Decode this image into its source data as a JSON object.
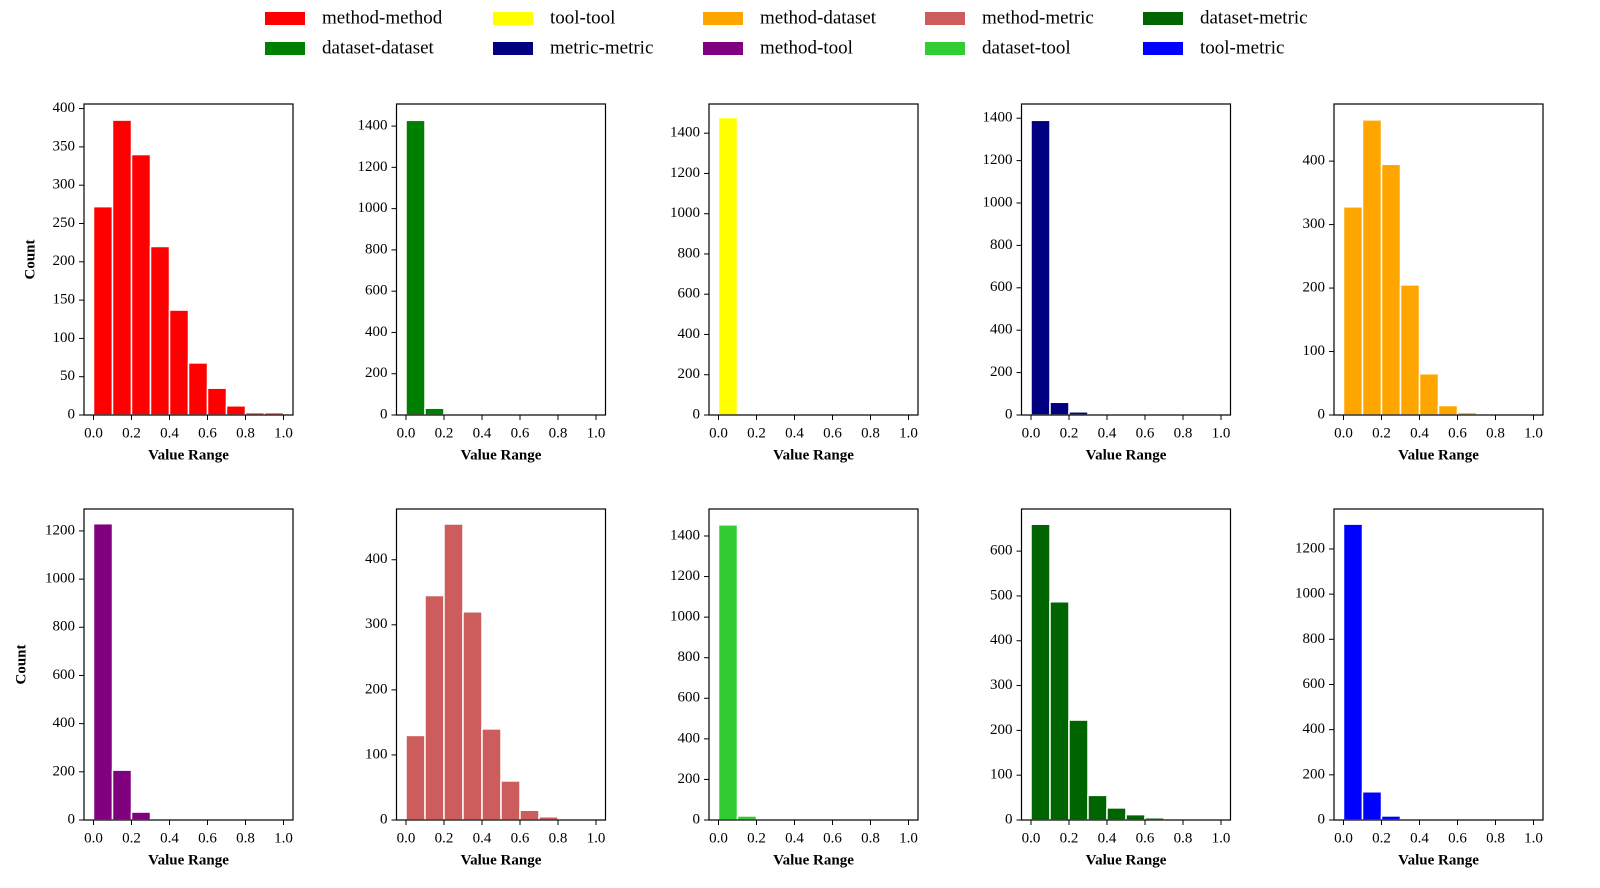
{
  "chart_data": [
    {
      "type": "histogram",
      "xlabel": "Value Range",
      "ylabel": "Count",
      "series": [
        {
          "name": "method-method",
          "color": "#ff0000",
          "values": [
            272,
            385,
            340,
            220,
            137,
            68,
            35,
            12,
            3,
            3
          ]
        }
      ],
      "bins": [
        0,
        0.1,
        0.2,
        0.3,
        0.4,
        0.5,
        0.6,
        0.7,
        0.8,
        0.9,
        1
      ],
      "xlim": [
        -0.05,
        1.05
      ],
      "ylim": [
        0,
        406
      ],
      "xticks": [
        {
          "value": 0,
          "label": "0.0"
        },
        0.2,
        0.4,
        0.6,
        0.8,
        {
          "value": 1,
          "label": "1.0"
        }
      ],
      "yticks": [
        0,
        50,
        100,
        150,
        200,
        250,
        300,
        350,
        400
      ]
    },
    {
      "type": "histogram",
      "xlabel": "Value Range",
      "series": [
        {
          "name": "dataset-dataset",
          "color": "#008000",
          "values": [
            1428,
            33,
            5,
            2,
            1,
            0,
            0,
            0,
            0,
            0
          ]
        }
      ],
      "bins": [
        0,
        0.1,
        0.2,
        0.3,
        0.4,
        0.5,
        0.6,
        0.7,
        0.8,
        0.9,
        1
      ],
      "xlim": [
        -0.05,
        1.05
      ],
      "ylim": [
        0,
        1507
      ],
      "xticks": [
        {
          "value": 0,
          "label": "0.0"
        },
        0.2,
        0.4,
        0.6,
        0.8,
        {
          "value": 1,
          "label": "1.0"
        }
      ],
      "yticks": [
        0,
        200,
        400,
        600,
        800,
        1000,
        1200,
        1400
      ]
    },
    {
      "type": "histogram",
      "xlabel": "Value Range",
      "series": [
        {
          "name": "tool-tool",
          "color": "#ffff00",
          "values": [
            1478,
            2,
            0,
            0,
            0,
            0,
            0,
            0,
            0,
            0
          ]
        }
      ],
      "bins": [
        0,
        0.1,
        0.2,
        0.3,
        0.4,
        0.5,
        0.6,
        0.7,
        0.8,
        0.9,
        1
      ],
      "xlim": [
        -0.05,
        1.05
      ],
      "ylim": [
        0,
        1545
      ],
      "xticks": [
        {
          "value": 0,
          "label": "0.0"
        },
        0.2,
        0.4,
        0.6,
        0.8,
        {
          "value": 1,
          "label": "1.0"
        }
      ],
      "yticks": [
        0,
        200,
        400,
        600,
        800,
        1000,
        1200,
        1400
      ]
    },
    {
      "type": "histogram",
      "xlabel": "Value Range",
      "series": [
        {
          "name": "metric-metric",
          "color": "#000080",
          "values": [
            1390,
            60,
            15,
            2,
            1,
            0,
            0,
            0,
            0,
            0
          ]
        }
      ],
      "bins": [
        0,
        0.1,
        0.2,
        0.3,
        0.4,
        0.5,
        0.6,
        0.7,
        0.8,
        0.9,
        1
      ],
      "xlim": [
        -0.05,
        1.05
      ],
      "ylim": [
        0,
        1467
      ],
      "xticks": [
        {
          "value": 0,
          "label": "0.0"
        },
        0.2,
        0.4,
        0.6,
        0.8,
        {
          "value": 1,
          "label": "1.0"
        }
      ],
      "yticks": [
        0,
        200,
        400,
        600,
        800,
        1000,
        1200,
        1400
      ]
    },
    {
      "type": "histogram",
      "xlabel": "Value Range",
      "series": [
        {
          "name": "method-dataset",
          "color": "#ffa500",
          "values": [
            328,
            465,
            395,
            205,
            65,
            15,
            4,
            0,
            0,
            0
          ]
        }
      ],
      "bins": [
        0,
        0.1,
        0.2,
        0.3,
        0.4,
        0.5,
        0.6,
        0.7,
        0.8,
        0.9,
        1
      ],
      "xlim": [
        -0.05,
        1.05
      ],
      "ylim": [
        0,
        490
      ],
      "xticks": [
        {
          "value": 0,
          "label": "0.0"
        },
        0.2,
        0.4,
        0.6,
        0.8,
        {
          "value": 1,
          "label": "1.0"
        }
      ],
      "yticks": [
        0,
        100,
        200,
        300,
        400
      ]
    },
    {
      "type": "histogram",
      "xlabel": "Value Range",
      "ylabel": "Count",
      "series": [
        {
          "name": "method-tool",
          "color": "#800080",
          "values": [
            1230,
            207,
            33,
            3,
            1,
            0,
            0,
            0,
            0,
            0
          ]
        }
      ],
      "bins": [
        0,
        0.1,
        0.2,
        0.3,
        0.4,
        0.5,
        0.6,
        0.7,
        0.8,
        0.9,
        1
      ],
      "xlim": [
        -0.05,
        1.05
      ],
      "ylim": [
        0,
        1291
      ],
      "xticks": [
        {
          "value": 0,
          "label": "0.0"
        },
        0.2,
        0.4,
        0.6,
        0.8,
        {
          "value": 1,
          "label": "1.0"
        }
      ],
      "yticks": [
        0,
        200,
        400,
        600,
        800,
        1000,
        1200
      ]
    },
    {
      "type": "histogram",
      "xlabel": "Value Range",
      "series": [
        {
          "name": "method-metric",
          "color": "#cd5c5c",
          "values": [
            130,
            345,
            455,
            320,
            140,
            60,
            15,
            5,
            1,
            0
          ]
        }
      ],
      "bins": [
        0,
        0.1,
        0.2,
        0.3,
        0.4,
        0.5,
        0.6,
        0.7,
        0.8,
        0.9,
        1
      ],
      "xlim": [
        -0.05,
        1.05
      ],
      "ylim": [
        0,
        478
      ],
      "xticks": [
        {
          "value": 0,
          "label": "0.0"
        },
        0.2,
        0.4,
        0.6,
        0.8,
        {
          "value": 1,
          "label": "1.0"
        }
      ],
      "yticks": [
        0,
        100,
        200,
        300,
        400
      ]
    },
    {
      "type": "histogram",
      "xlabel": "Value Range",
      "series": [
        {
          "name": "dataset-tool",
          "color": "#32cd32",
          "values": [
            1455,
            20,
            3,
            1,
            0,
            0,
            0,
            0,
            0,
            0
          ]
        }
      ],
      "bins": [
        0,
        0.1,
        0.2,
        0.3,
        0.4,
        0.5,
        0.6,
        0.7,
        0.8,
        0.9,
        1
      ],
      "xlim": [
        -0.05,
        1.05
      ],
      "ylim": [
        0,
        1533
      ],
      "xticks": [
        {
          "value": 0,
          "label": "0.0"
        },
        0.2,
        0.4,
        0.6,
        0.8,
        {
          "value": 1,
          "label": "1.0"
        }
      ],
      "yticks": [
        0,
        200,
        400,
        600,
        800,
        1000,
        1200,
        1400
      ]
    },
    {
      "type": "histogram",
      "xlabel": "Value Range",
      "series": [
        {
          "name": "dataset-metric",
          "color": "#006400",
          "values": [
            660,
            487,
            223,
            55,
            27,
            12,
            5,
            1,
            0,
            0
          ]
        }
      ],
      "bins": [
        0,
        0.1,
        0.2,
        0.3,
        0.4,
        0.5,
        0.6,
        0.7,
        0.8,
        0.9,
        1
      ],
      "xlim": [
        -0.05,
        1.05
      ],
      "ylim": [
        0,
        694
      ],
      "xticks": [
        {
          "value": 0,
          "label": "0.0"
        },
        0.2,
        0.4,
        0.6,
        0.8,
        {
          "value": 1,
          "label": "1.0"
        }
      ],
      "yticks": [
        0,
        100,
        200,
        300,
        400,
        500,
        600
      ]
    },
    {
      "type": "histogram",
      "xlabel": "Value Range",
      "series": [
        {
          "name": "tool-metric",
          "color": "#0000ff",
          "values": [
            1310,
            125,
            18,
            5,
            2,
            1,
            0,
            0,
            0,
            0
          ]
        }
      ],
      "bins": [
        0,
        0.1,
        0.2,
        0.3,
        0.4,
        0.5,
        0.6,
        0.7,
        0.8,
        0.9,
        1
      ],
      "xlim": [
        -0.05,
        1.05
      ],
      "ylim": [
        0,
        1377
      ],
      "xticks": [
        {
          "value": 0,
          "label": "0.0"
        },
        0.2,
        0.4,
        0.6,
        0.8,
        {
          "value": 1,
          "label": "1.0"
        }
      ],
      "yticks": [
        0,
        200,
        400,
        600,
        800,
        1000,
        1200
      ]
    }
  ]
}
